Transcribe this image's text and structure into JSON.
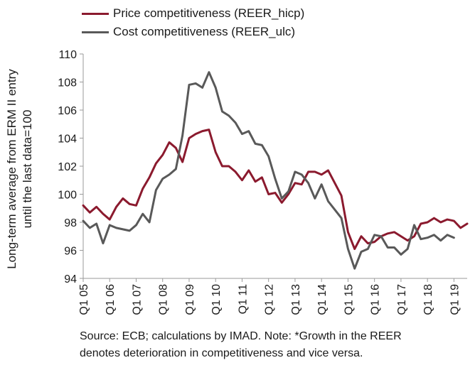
{
  "chart_data": {
    "type": "line",
    "ylabel": "Long-term average from ERM II entry until the last data=100",
    "ylim": [
      94,
      110
    ],
    "yticks": [
      94,
      96,
      98,
      100,
      102,
      104,
      106,
      108,
      110
    ],
    "xtick_labels": [
      "Q1 05",
      "Q1 06",
      "Q1 07",
      "Q1 08",
      "Q1 09",
      "Q1 10",
      "Q1 11",
      "Q1 12",
      "Q1 13",
      "Q1 14",
      "Q1 15",
      "Q1 16",
      "Q1 17",
      "Q1 18",
      "Q1 19"
    ],
    "grid": false,
    "legend_position": "top-left",
    "series": [
      {
        "name": "Price competitiveness (REER_hicp)",
        "color": "#8b1a2e",
        "values": [
          99.2,
          98.7,
          99.1,
          98.6,
          98.2,
          99.1,
          99.7,
          99.3,
          99.2,
          100.4,
          101.2,
          102.2,
          102.8,
          103.7,
          103.3,
          102.3,
          104.0,
          104.3,
          104.5,
          104.6,
          103.0,
          102.0,
          102.0,
          101.6,
          101.0,
          101.7,
          100.9,
          101.2,
          100.0,
          100.1,
          99.4,
          100.0,
          100.8,
          100.7,
          101.6,
          101.6,
          101.4,
          101.7,
          100.8,
          99.9,
          97.3,
          96.1,
          97.0,
          96.5,
          96.6,
          97.0,
          97.2,
          97.3,
          97.0,
          96.7,
          97.0,
          97.9,
          98.0,
          98.3,
          98.0,
          98.2,
          98.1,
          97.6,
          97.9
        ]
      },
      {
        "name": "Cost competitiveness (REER_ulc)",
        "color": "#595959",
        "values": [
          98.1,
          97.6,
          97.9,
          96.5,
          97.8,
          97.6,
          97.5,
          97.4,
          97.8,
          98.6,
          98.0,
          100.3,
          101.1,
          101.4,
          101.8,
          104.2,
          107.8,
          107.9,
          107.6,
          108.7,
          107.6,
          105.9,
          105.6,
          105.1,
          104.3,
          104.5,
          103.6,
          103.5,
          102.7,
          101.1,
          99.7,
          100.2,
          101.6,
          101.4,
          100.8,
          99.7,
          100.7,
          99.5,
          98.9,
          98.3,
          96.1,
          94.7,
          95.9,
          96.1,
          97.1,
          97.0,
          96.2,
          96.2,
          95.7,
          96.1,
          97.8,
          96.8,
          96.9,
          97.1,
          96.7,
          97.1,
          96.9
        ]
      }
    ]
  },
  "legend": {
    "items": [
      {
        "label": "Price competitiveness (REER_hicp)",
        "color": "#8b1a2e"
      },
      {
        "label": "Cost competitiveness (REER_ulc)",
        "color": "#595959"
      }
    ]
  },
  "source_note": {
    "line1": "Source: ECB; calculations by IMAD. Note: *Growth in the REER",
    "line2": "denotes deterioration in competitiveness and vice versa."
  }
}
